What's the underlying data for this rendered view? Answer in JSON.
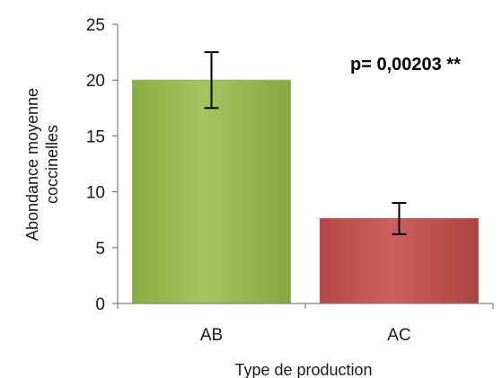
{
  "chart_data": {
    "type": "bar",
    "categories": [
      "AB",
      "AC"
    ],
    "values": [
      20.0,
      7.6
    ],
    "error": [
      2.5,
      1.4
    ],
    "colors": [
      "#9bbb59",
      "#c0504d"
    ],
    "xlabel": "Type de production",
    "ylabel_lines": [
      "Abondance moyenne",
      "coccinelles"
    ],
    "ylim": [
      0,
      25
    ],
    "yticks": [
      0,
      5,
      10,
      15,
      20,
      25
    ],
    "yticks_labels": [
      "0",
      "5",
      "10",
      "15",
      "20",
      "25"
    ],
    "grid": false,
    "legend": "none",
    "annotation": "p= 0,00203 **"
  }
}
